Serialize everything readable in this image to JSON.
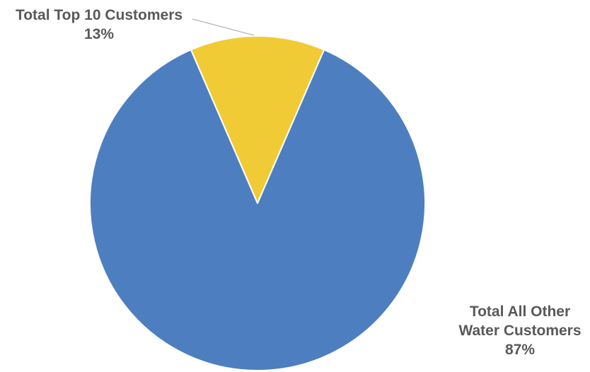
{
  "chart_data": {
    "type": "pie",
    "title": "",
    "slices": [
      {
        "label_lines": [
          "Total Top 10 Customers"
        ],
        "value": 13,
        "value_label": "13%",
        "color": "#F0CB35"
      },
      {
        "label_lines": [
          "Total All Other",
          "Water Customers"
        ],
        "value": 87,
        "value_label": "87%",
        "color": "#4D7FC0"
      }
    ],
    "legend": "none",
    "data_labels": "outside-with-leader"
  }
}
